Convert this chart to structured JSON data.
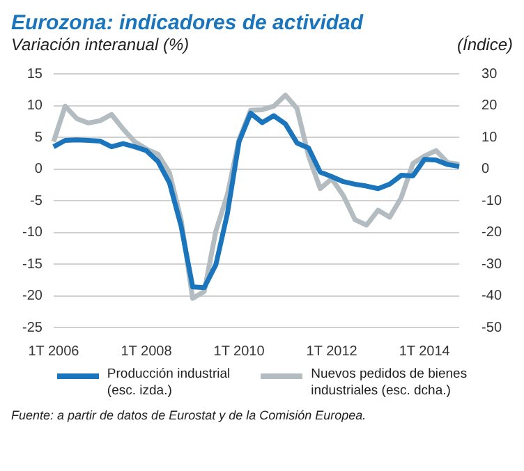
{
  "chart_data": {
    "type": "line",
    "title": "Eurozona: indicadores de actividad",
    "ylabel": "Variación interanual (%)",
    "y2label": "(Índice)",
    "categories": [
      "1T 2006",
      null,
      null,
      null,
      null,
      null,
      null,
      null,
      "1T 2008",
      null,
      null,
      null,
      null,
      null,
      null,
      null,
      "1T 2010",
      null,
      null,
      null,
      null,
      null,
      null,
      null,
      "1T 2012",
      null,
      null,
      null,
      null,
      null,
      null,
      null,
      "1T 2014",
      null,
      null,
      null
    ],
    "series": [
      {
        "name": "Producción industrial\n(esc. izda.)",
        "color": "#1a75bc",
        "values": [
          3.5,
          4.5,
          4.6,
          4.5,
          4.4,
          3.5,
          4.0,
          3.5,
          2.9,
          1.2,
          -2.2,
          -9,
          -18.6,
          -18.7,
          -15.1,
          -7,
          4.3,
          8.8,
          7.3,
          8.4,
          7.1,
          4.1,
          3.3,
          -0.5,
          -1.2,
          -2.0,
          -2.4,
          -2.7,
          -3.1,
          -2.4,
          -1.0,
          -1.1,
          1.5,
          1.4,
          0.7,
          0.4
        ]
      },
      {
        "name": "Nuevos pedidos de bienes\nindustriales (esc. dcha.)",
        "color": "#b3bcc0",
        "axis": "y2",
        "values": [
          8.6,
          19.8,
          15.9,
          14.5,
          15.2,
          17.2,
          12.6,
          8.6,
          6.3,
          4.7,
          -1.2,
          -16,
          -40.8,
          -38.6,
          -19.6,
          -8,
          9.3,
          18.5,
          18.7,
          19.8,
          23.3,
          19.1,
          4.1,
          -6.2,
          -3.1,
          -8.4,
          -16,
          -17.7,
          -13,
          -15.2,
          -9,
          1.7,
          4.1,
          5.8,
          2.0,
          1.5
        ]
      }
    ],
    "ylim": [
      -25,
      15
    ],
    "yticks": [
      -25,
      -20,
      -15,
      -10,
      -5,
      0,
      5,
      10,
      15
    ],
    "y2lim": [
      -50,
      30
    ],
    "y2ticks": [
      -50,
      -40,
      -30,
      -20,
      -10,
      0,
      10,
      20,
      30
    ],
    "grid": "y",
    "legend": "bottom",
    "annotations": [
      "Fuente: a partir de datos de Eurostat y de la Comisión Europea."
    ]
  }
}
